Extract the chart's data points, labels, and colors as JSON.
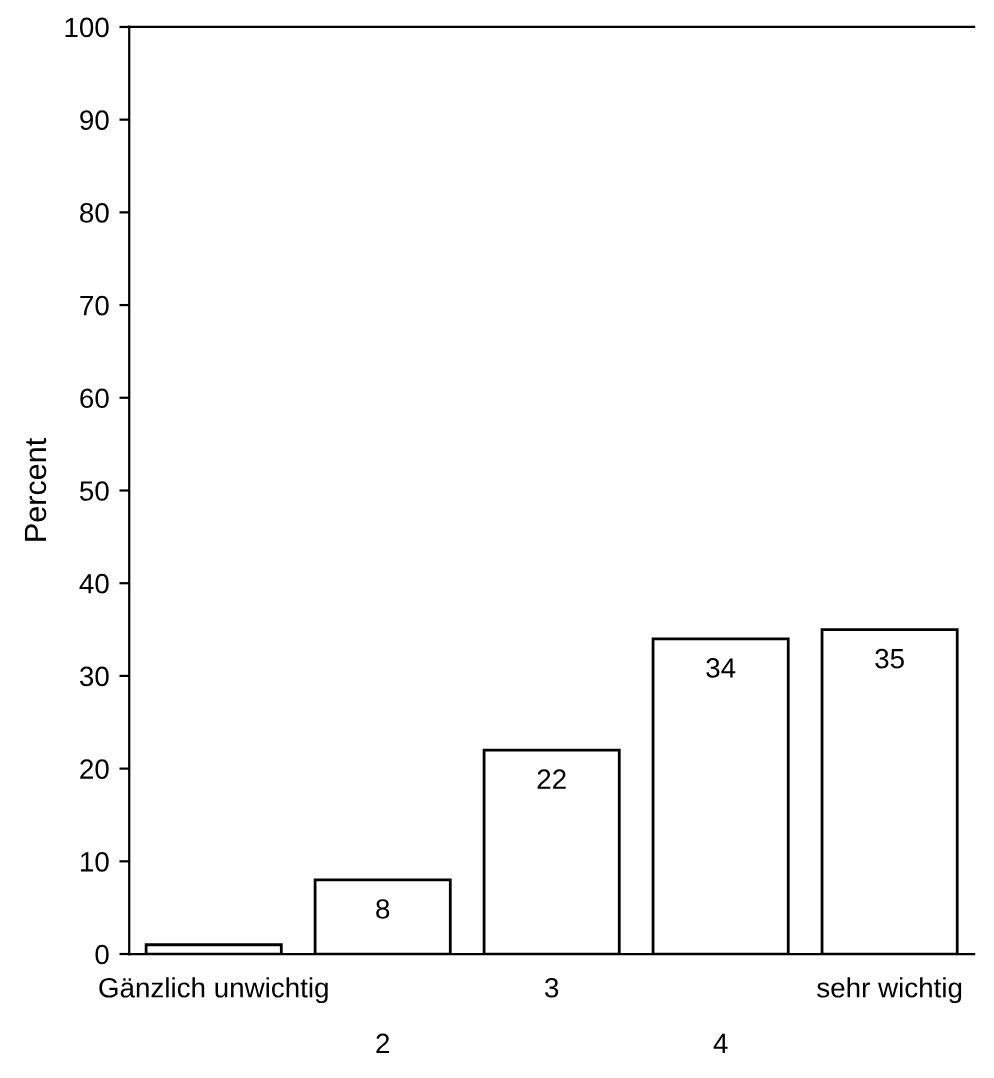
{
  "chart_data": {
    "type": "bar",
    "ylabel": "Percent",
    "categories": [
      "Gänzlich unwichtig",
      "2",
      "3",
      "4",
      "sehr wichtig"
    ],
    "values": [
      1,
      8,
      22,
      34,
      35
    ],
    "value_labels": [
      null,
      "8",
      "22",
      "34",
      "35"
    ],
    "color": "#ffffff",
    "ylim": [
      0,
      100
    ],
    "yticks": [
      0,
      10,
      20,
      30,
      40,
      50,
      60,
      70,
      80,
      90,
      100
    ],
    "grid": false
  }
}
